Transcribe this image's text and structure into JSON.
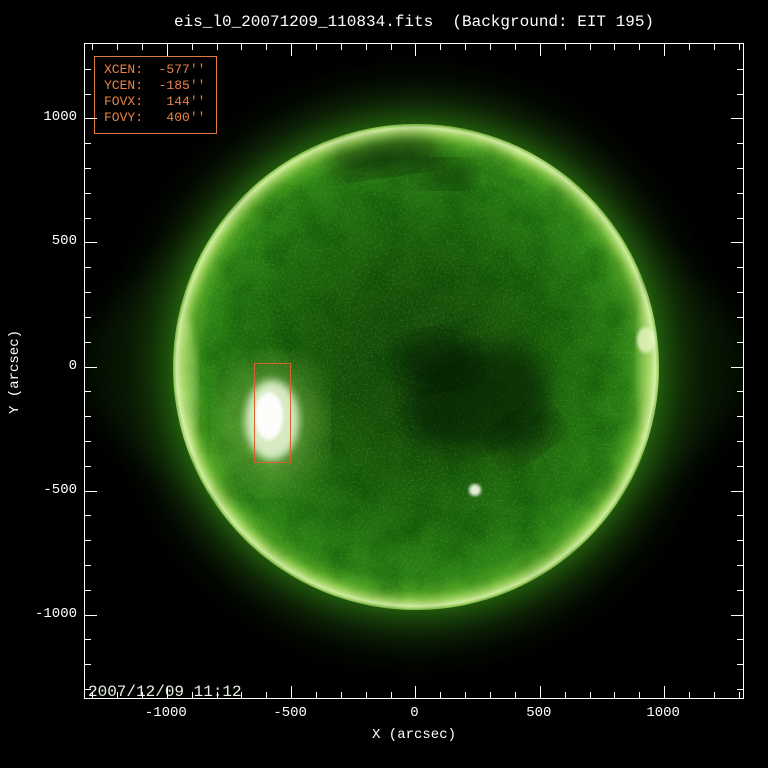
{
  "title": "eis_l0_20071209_110834.fits  (Background: EIT 195)",
  "info_box": {
    "lines": [
      "XCEN:  -577''",
      "YCEN:  -185''",
      "FOVX:   144''",
      "FOVY:   400''"
    ]
  },
  "timestamp": "2007/12/09 11:12",
  "colors": {
    "background": "#000000",
    "axis": "#ffffff",
    "info_text_orange": "#ec8247",
    "fov_rect_orange": "#d4632f",
    "solar_disk_green": "#257511",
    "limb_bright_green": "#a8d860"
  },
  "chart_data": {
    "type": "heatmap",
    "title": "eis_l0_20071209_110834.fits  (Background: EIT 195)",
    "description": "Full-disk SOHO/EIT 195 A solar EUV image (green colortable) used as background for Hinode/EIS study pointing; bright active region on east hemisphere inside orange EIS field-of-view box; dark coronal hole near disk center; bright limb ring.",
    "background_channel": "EIT 195",
    "axes": {
      "x": {
        "label": "X (arcsec)",
        "min": -1329,
        "max": 1317,
        "major_step": 500,
        "minor_step": 100,
        "major_ticks": [
          -1000,
          -500,
          0,
          500,
          1000
        ],
        "tick_labels": [
          "-1000",
          "-500",
          "0",
          "500",
          "1000"
        ]
      },
      "y": {
        "label": "Y (arcsec)",
        "min": -1336,
        "max": 1300,
        "major_step": 500,
        "minor_step": 100,
        "major_ticks": [
          -1000,
          -500,
          0,
          500,
          1000
        ],
        "tick_labels": [
          "-1000",
          "-500",
          "0",
          "500",
          "1000"
        ]
      }
    },
    "grid": false,
    "overlays": {
      "fov_box": {
        "xcen_arcsec": -577,
        "ycen_arcsec": -185,
        "fovx_arcsec": 144,
        "fovy_arcsec": 400
      },
      "timestamp": "2007/12/09 11:12",
      "solar_disk": {
        "center_arcsec": [
          0,
          0
        ],
        "radius_arcsec": 975
      }
    }
  }
}
